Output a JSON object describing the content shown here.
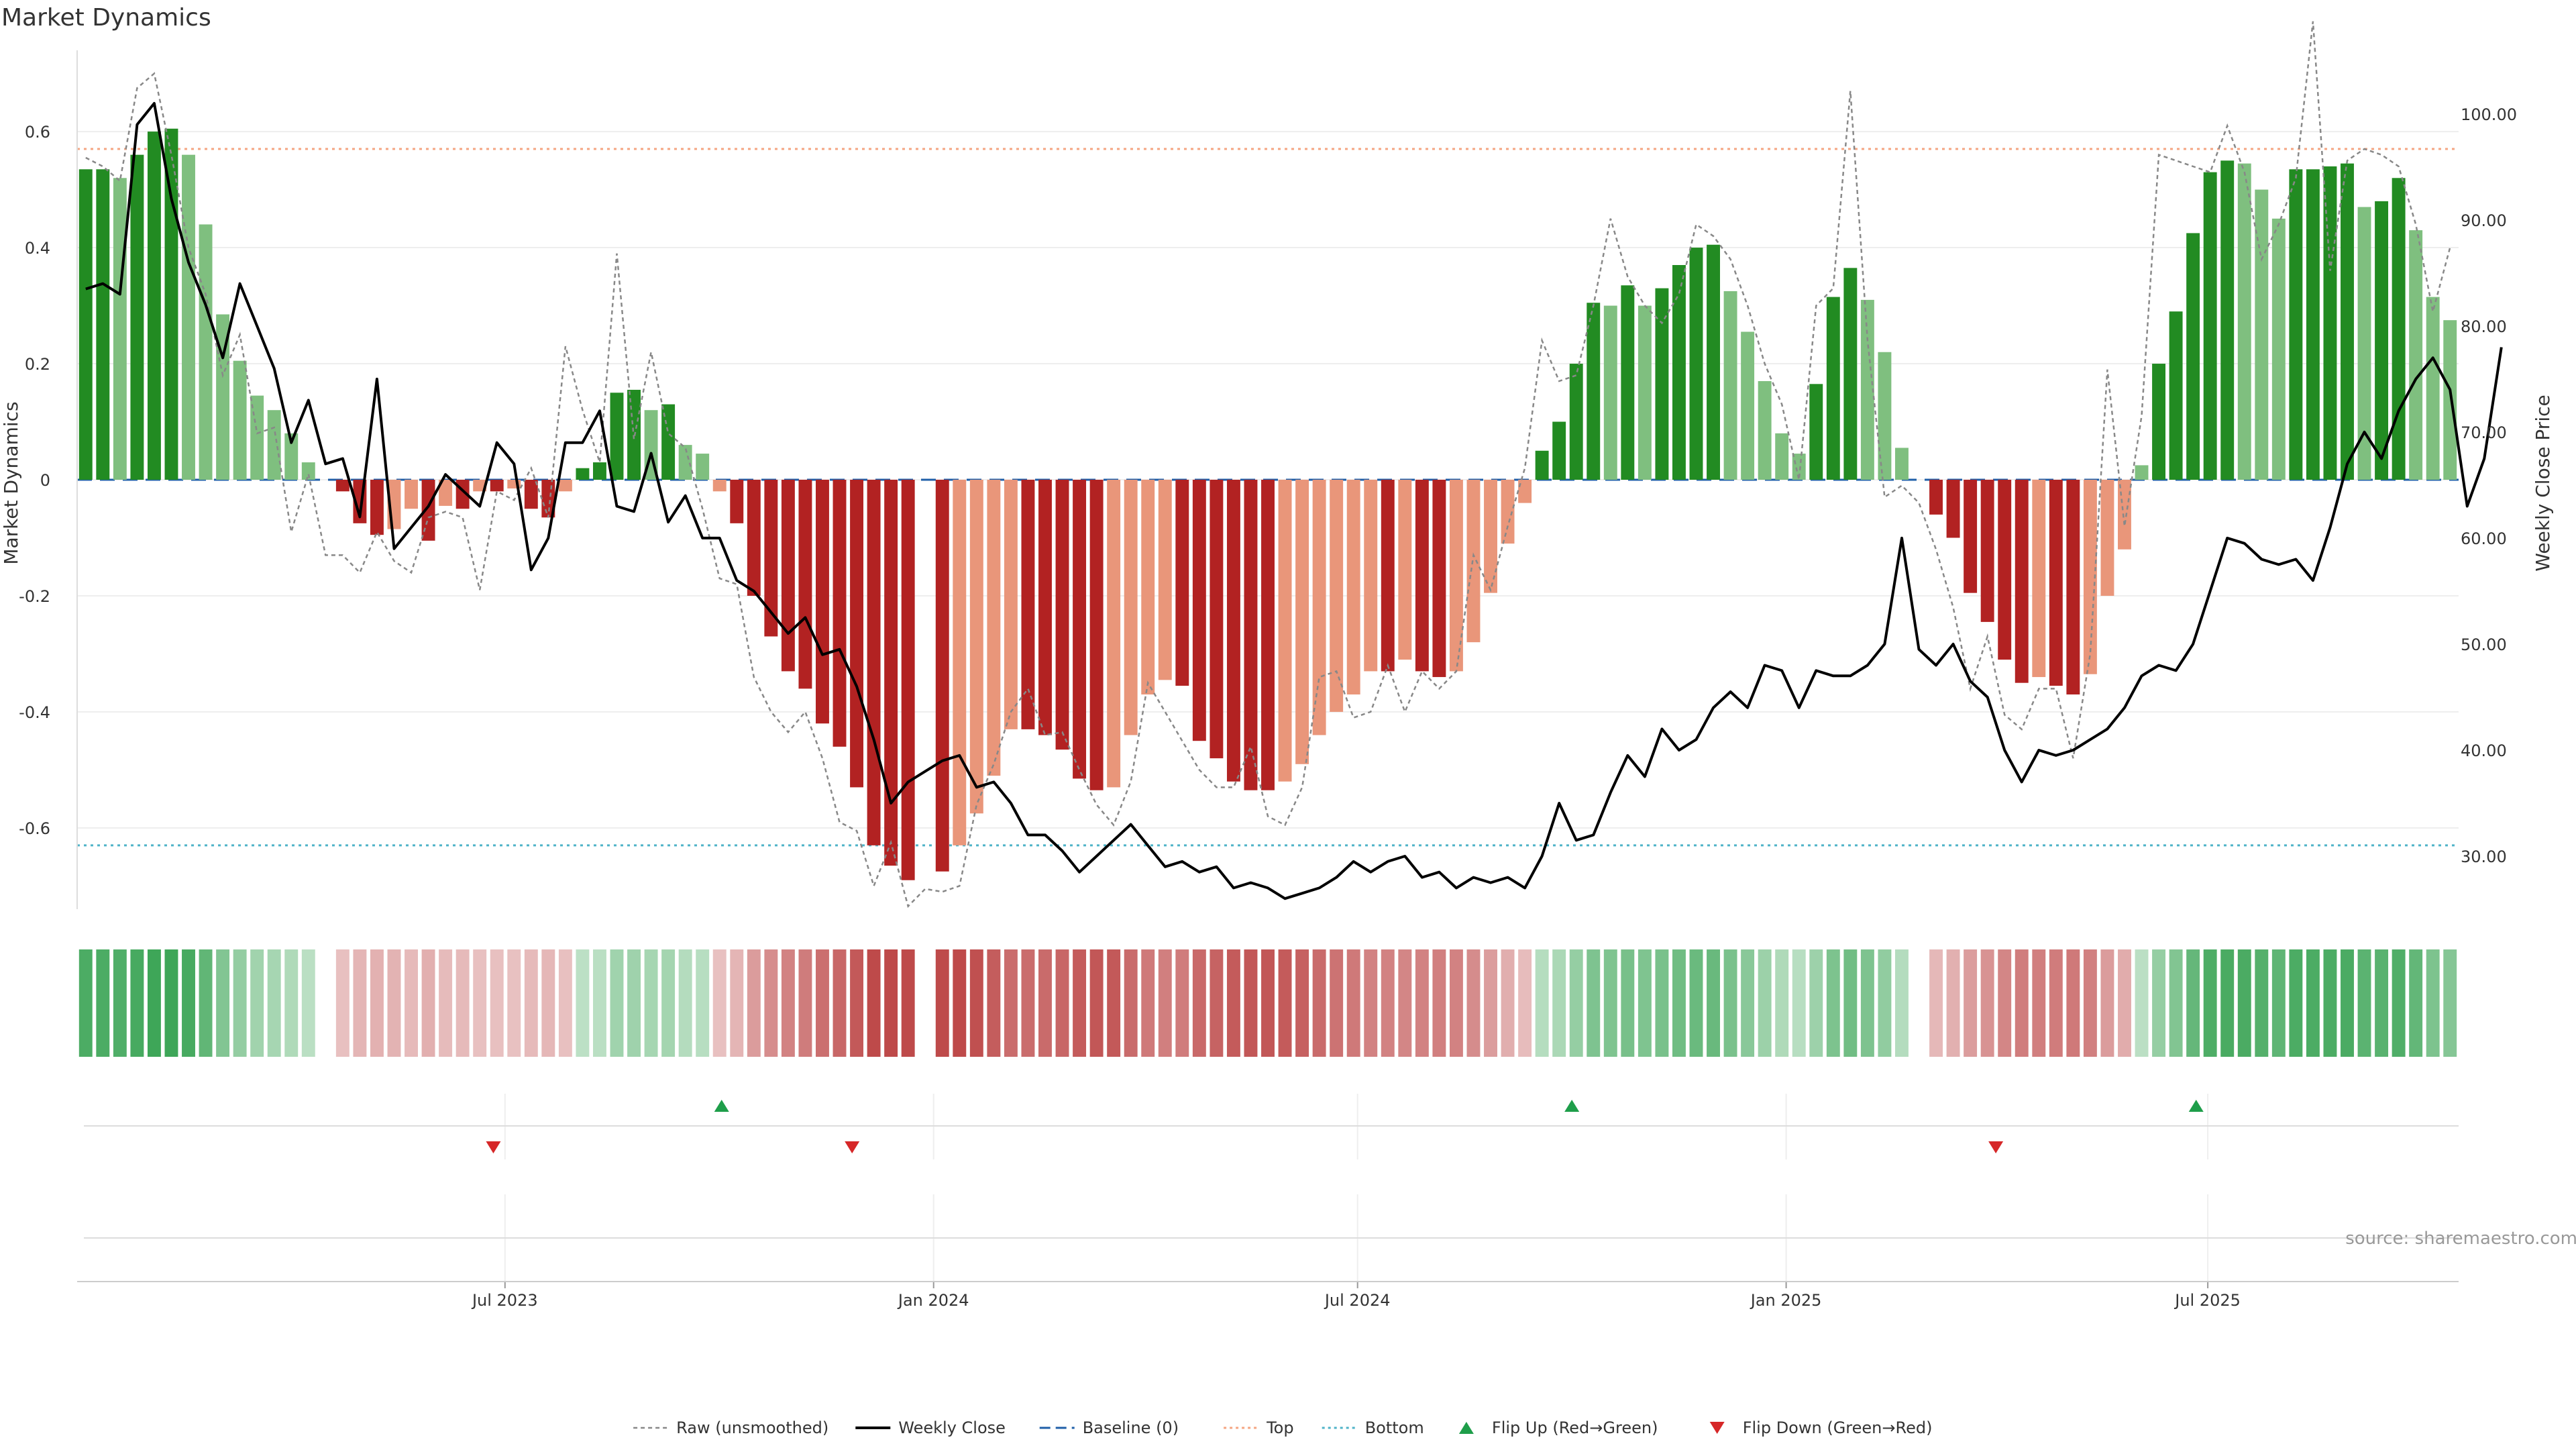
{
  "chart_data": {
    "type": "bar",
    "title": "Market Dynamics",
    "ylabel_left": "Market Dynamics",
    "ylabel_right": "Weekly Close Price",
    "source": "source: sharemaestro.com",
    "ylim_left": [
      -0.74,
      0.74
    ],
    "ylim_right": [
      25.0,
      106.0
    ],
    "yticks_left": [
      -0.6,
      -0.4,
      -0.2,
      0,
      0.2,
      0.4,
      0.6
    ],
    "yticks_left_labels": [
      "-0.6",
      "-0.4",
      "-0.2",
      "0",
      "0.2",
      "0.4",
      "0.6"
    ],
    "yticks_right": [
      30,
      40,
      50,
      60,
      70,
      80,
      90,
      100
    ],
    "yticks_right_labels": [
      "30.00",
      "40.00",
      "50.00",
      "60.00",
      "70.00",
      "80.00",
      "90.00",
      "100.00"
    ],
    "x_start": "2023-01-02",
    "x_end": "2025-10-13",
    "xticks": [
      "2023-07-01",
      "2024-01-01",
      "2024-07-01",
      "2025-01-01",
      "2025-07-01"
    ],
    "xtick_labels": [
      "Jul 2023",
      "Jan 2024",
      "Jul 2024",
      "Jan 2025",
      "Jul 2025"
    ],
    "top_level": 0.57,
    "bottom_level": -0.63,
    "baseline": 0,
    "colors": {
      "strong_green": "#228B22",
      "light_green": "#7FBF7F",
      "strong_red": "#B22222",
      "light_red": "#E9967A",
      "close_line": "#000000",
      "raw_line": "#888888",
      "baseline": "#1F5FA8",
      "top": "#F4A582",
      "bottom": "#4FB3C8",
      "flip_up": "#1E9E4A",
      "flip_down": "#D62728"
    },
    "legend": {
      "raw": "Raw (unsmoothed)",
      "close": "Weekly Close",
      "baseline": "Baseline (0)",
      "top": "Top",
      "bottom": "Bottom",
      "flip_up": "Flip Up (Red→Green)",
      "flip_down": "Flip Down (Green→Red)"
    },
    "legend_position": "bottom",
    "grid": true,
    "series": [
      {
        "name": "Market Dynamics",
        "values": [
          0.535,
          0.535,
          0.52,
          0.56,
          0.6,
          0.605,
          0.56,
          0.44,
          0.285,
          0.205,
          0.145,
          0.12,
          0.08,
          0.03,
          0,
          -0.02,
          -0.075,
          -0.095,
          -0.085,
          -0.05,
          -0.105,
          -0.045,
          -0.05,
          -0.02,
          -0.02,
          -0.015,
          -0.05,
          -0.065,
          -0.02,
          0.02,
          0.03,
          0.15,
          0.155,
          0.12,
          0.13,
          0.06,
          0.045,
          -0.02,
          -0.075,
          -0.2,
          -0.27,
          -0.33,
          -0.36,
          -0.42,
          -0.46,
          -0.53,
          -0.63,
          -0.665,
          -0.69,
          0,
          -0.675,
          -0.63,
          -0.575,
          -0.51,
          -0.43,
          -0.43,
          -0.44,
          -0.465,
          -0.515,
          -0.535,
          -0.53,
          -0.44,
          -0.37,
          -0.345,
          -0.355,
          -0.45,
          -0.48,
          -0.52,
          -0.535,
          -0.535,
          -0.52,
          -0.49,
          -0.44,
          -0.4,
          -0.37,
          -0.33,
          -0.33,
          -0.31,
          -0.33,
          -0.34,
          -0.33,
          -0.28,
          -0.195,
          -0.11,
          -0.04,
          0.05,
          0.1,
          0.2,
          0.305,
          0.3,
          0.335,
          0.3,
          0.33,
          0.37,
          0.4,
          0.405,
          0.325,
          0.255,
          0.17,
          0.08,
          0.045,
          0.165,
          0.315,
          0.365,
          0.31,
          0.22,
          0.055,
          0,
          -0.06,
          -0.1,
          -0.195,
          -0.245,
          -0.31,
          -0.35,
          -0.34,
          -0.355,
          -0.37,
          -0.335,
          -0.2,
          -0.12,
          0.025,
          0.2,
          0.29,
          0.425,
          0.53,
          0.55,
          0.545,
          0.5,
          0.45,
          0.535,
          0.535,
          0.54,
          0.545,
          0.47,
          0.48,
          0.52,
          0.43,
          0.315,
          0.275
        ]
      },
      {
        "name": "Raw (unsmoothed)",
        "values": [
          0.555,
          0.54,
          0.515,
          0.675,
          0.7,
          0.56,
          0.4,
          0.32,
          0.18,
          0.25,
          0.08,
          0.09,
          -0.09,
          0.01,
          -0.13,
          -0.13,
          -0.16,
          -0.09,
          -0.14,
          -0.16,
          -0.065,
          -0.055,
          -0.065,
          -0.19,
          -0.02,
          -0.035,
          0.02,
          -0.065,
          0.23,
          0.12,
          0.03,
          0.39,
          0.07,
          0.22,
          0.08,
          0.055,
          -0.05,
          -0.17,
          -0.18,
          -0.34,
          -0.4,
          -0.435,
          -0.4,
          -0.48,
          -0.59,
          -0.605,
          -0.7,
          -0.625,
          -0.735,
          -0.705,
          -0.71,
          -0.7,
          -0.56,
          -0.49,
          -0.4,
          -0.36,
          -0.44,
          -0.435,
          -0.5,
          -0.56,
          -0.595,
          -0.52,
          -0.35,
          -0.4,
          -0.45,
          -0.5,
          -0.53,
          -0.53,
          -0.46,
          -0.58,
          -0.595,
          -0.53,
          -0.34,
          -0.33,
          -0.41,
          -0.4,
          -0.32,
          -0.4,
          -0.33,
          -0.36,
          -0.33,
          -0.13,
          -0.19,
          -0.08,
          0.02,
          0.24,
          0.17,
          0.18,
          0.3,
          0.45,
          0.35,
          0.3,
          0.27,
          0.32,
          0.44,
          0.42,
          0.38,
          0.3,
          0.2,
          0.13,
          0,
          0.3,
          0.33,
          0.67,
          0.24,
          -0.03,
          -0.01,
          -0.04,
          -0.12,
          -0.22,
          -0.36,
          -0.27,
          -0.405,
          -0.43,
          -0.36,
          -0.36,
          -0.48,
          -0.3,
          0.19,
          -0.08,
          0.11,
          0.56,
          0.55,
          0.54,
          0.53,
          0.61,
          0.53,
          0.38,
          0.44,
          0.52,
          0.79,
          0.36,
          0.55,
          0.57,
          0.56,
          0.54,
          0.44,
          0.29,
          0.4
        ]
      },
      {
        "name": "Weekly Close",
        "values": [
          83.5,
          84.0,
          83.0,
          99.0,
          101.0,
          92.0,
          86.0,
          82.0,
          77.0,
          84.0,
          80.0,
          76.0,
          69.0,
          73.0,
          67.0,
          67.5,
          62.0,
          75.0,
          59.0,
          61.0,
          63.0,
          66.0,
          64.5,
          63.0,
          69.0,
          67.0,
          57.0,
          60.0,
          69.0,
          69.0,
          72.0,
          63.0,
          62.5,
          68.0,
          61.5,
          64.0,
          60.0,
          60.0,
          56.0,
          55.0,
          53.0,
          51.0,
          52.5,
          49.0,
          49.5,
          46.0,
          41.0,
          35.0,
          37.0,
          38.0,
          39.0,
          39.5,
          36.5,
          37.0,
          35.0,
          32.0,
          32.0,
          30.5,
          28.5,
          30.0,
          31.5,
          33.0,
          31.0,
          29.0,
          29.5,
          28.5,
          29.0,
          27.0,
          27.5,
          27.0,
          26.0,
          26.5,
          27.0,
          28.0,
          29.5,
          28.5,
          29.5,
          30.0,
          28.0,
          28.5,
          27.0,
          28.0,
          27.5,
          28.0,
          27.0,
          30.0,
          35.0,
          31.5,
          32.0,
          36.0,
          39.5,
          37.5,
          42.0,
          40.0,
          41.0,
          44.0,
          45.5,
          44.0,
          48.0,
          47.5,
          44.0,
          47.5,
          47.0,
          47.0,
          48.0,
          50.0,
          60.0,
          49.5,
          48.0,
          50.0,
          46.5,
          45.0,
          40.0,
          37.0,
          40.0,
          39.5,
          40.0,
          41.0,
          42.0,
          44.0,
          47.0,
          48.0,
          47.5,
          50.0,
          55.0,
          60.0,
          59.5,
          58.0,
          57.5,
          58.0,
          56.0,
          61.0,
          67.0,
          70.0,
          67.5,
          72.0,
          75.0,
          77.0,
          74.0,
          63.0,
          67.5,
          78.0
        ]
      }
    ],
    "flip_up_dates": [
      "2023-10-02",
      "2024-10-01",
      "2025-06-26"
    ],
    "flip_down_dates": [
      "2023-06-26",
      "2023-11-27",
      "2025-04-01"
    ]
  }
}
